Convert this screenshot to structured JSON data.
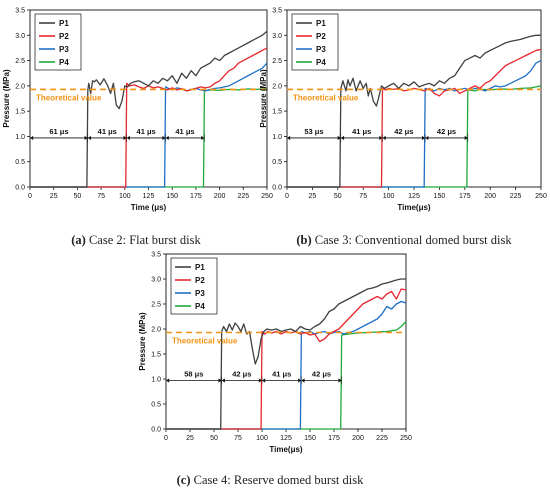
{
  "figure": {
    "colors": {
      "P1": "#404040",
      "P2": "#e8262d",
      "P3": "#1f6fc5",
      "P4": "#1fa83a",
      "theoretical": "#f29315"
    }
  },
  "chart_data": [
    {
      "type": "line",
      "caption_label": "(a)",
      "caption_text": " Case 2: Flat burst disk",
      "xlabel": "Time (μs)",
      "ylabel": "Pressure (MPa)",
      "xlim": [
        0,
        250
      ],
      "ylim": [
        0,
        3.5
      ],
      "xticks": [
        0,
        25,
        50,
        75,
        100,
        125,
        150,
        175,
        200,
        225,
        250
      ],
      "yticks": [
        0.0,
        0.5,
        1.0,
        1.5,
        2.0,
        2.5,
        3.0,
        3.5
      ],
      "grid": false,
      "legend_position": "top-left",
      "theoretical": {
        "label": "Theoretical value",
        "value": 1.93
      },
      "arrivals": [
        61,
        102,
        143,
        184
      ],
      "intervals": [
        {
          "from": 0,
          "to": 61,
          "label": "61 μs"
        },
        {
          "from": 61,
          "to": 102,
          "label": "41 μs"
        },
        {
          "from": 102,
          "to": 143,
          "label": "41 μs"
        },
        {
          "from": 143,
          "to": 184,
          "label": "41 μs"
        }
      ],
      "series": [
        {
          "name": "P1",
          "x": [
            0,
            60,
            61,
            62,
            64,
            66,
            68,
            70,
            74,
            78,
            82,
            85,
            88,
            91,
            94,
            97,
            100,
            103,
            106,
            110,
            115,
            120,
            125,
            130,
            135,
            140,
            145,
            150,
            155,
            160,
            165,
            170,
            175,
            180,
            185,
            190,
            195,
            200,
            205,
            210,
            215,
            220,
            225,
            230,
            235,
            240,
            245,
            250
          ],
          "y": [
            0,
            0,
            1.92,
            2.05,
            1.85,
            2.1,
            2.08,
            2.12,
            2.02,
            2.14,
            2.0,
            1.85,
            2.05,
            1.62,
            1.55,
            1.7,
            2.0,
            1.98,
            2.05,
            2.08,
            2.1,
            2.05,
            2.0,
            2.1,
            2.05,
            2.15,
            2.1,
            2.2,
            2.05,
            2.25,
            2.15,
            2.3,
            2.2,
            2.35,
            2.4,
            2.45,
            2.55,
            2.5,
            2.6,
            2.65,
            2.7,
            2.75,
            2.8,
            2.85,
            2.9,
            2.95,
            3.0,
            3.08
          ]
        },
        {
          "name": "P2",
          "x": [
            0,
            101,
            102,
            105,
            110,
            115,
            120,
            125,
            130,
            135,
            140,
            145,
            150,
            155,
            160,
            165,
            170,
            175,
            180,
            185,
            190,
            195,
            200,
            205,
            210,
            215,
            220,
            225,
            230,
            235,
            240,
            245,
            250
          ],
          "y": [
            0,
            0,
            2.05,
            2.0,
            2.02,
            1.98,
            1.95,
            2.0,
            1.96,
            1.98,
            1.95,
            1.92,
            1.96,
            1.92,
            1.95,
            1.9,
            1.92,
            1.95,
            1.98,
            1.96,
            1.98,
            2.05,
            2.1,
            2.2,
            2.3,
            2.35,
            2.45,
            2.5,
            2.55,
            2.6,
            2.65,
            2.7,
            2.75
          ]
        },
        {
          "name": "P3",
          "x": [
            0,
            142,
            143,
            146,
            150,
            155,
            160,
            165,
            170,
            175,
            180,
            185,
            190,
            195,
            200,
            205,
            210,
            215,
            220,
            225,
            230,
            235,
            240,
            245,
            250
          ],
          "y": [
            0,
            0,
            1.98,
            1.95,
            1.92,
            1.96,
            1.94,
            1.9,
            1.93,
            1.95,
            1.92,
            1.9,
            1.93,
            1.95,
            1.96,
            1.98,
            2.0,
            2.05,
            2.1,
            2.15,
            2.2,
            2.25,
            2.3,
            2.35,
            2.45
          ]
        },
        {
          "name": "P4",
          "x": [
            0,
            183,
            184,
            190,
            200,
            210,
            220,
            230,
            240,
            250
          ],
          "y": [
            0,
            0,
            1.9,
            1.92,
            1.91,
            1.93,
            1.92,
            1.94,
            1.93,
            1.95
          ]
        }
      ]
    },
    {
      "type": "line",
      "caption_label": "(b)",
      "caption_text": " Case 3: Conventional domed burst disk",
      "xlabel": "Time(μs)",
      "ylabel": "Pressure (MPa)",
      "xlim": [
        0,
        250
      ],
      "ylim": [
        0,
        3.5
      ],
      "xticks": [
        0,
        25,
        50,
        75,
        100,
        125,
        150,
        175,
        200,
        225,
        250
      ],
      "yticks": [
        0.0,
        0.5,
        1.0,
        1.5,
        2.0,
        2.5,
        3.0,
        3.5
      ],
      "grid": false,
      "legend_position": "top-left",
      "theoretical": {
        "label": "Theoretical value",
        "value": 1.93
      },
      "arrivals": [
        53,
        94,
        136,
        178
      ],
      "intervals": [
        {
          "from": 0,
          "to": 53,
          "label": "53 μs"
        },
        {
          "from": 53,
          "to": 94,
          "label": "41 μs"
        },
        {
          "from": 94,
          "to": 136,
          "label": "42 μs"
        },
        {
          "from": 136,
          "to": 178,
          "label": "42 μs"
        }
      ],
      "series": [
        {
          "name": "P1",
          "x": [
            0,
            52,
            53,
            55,
            58,
            60,
            62,
            65,
            68,
            72,
            75,
            78,
            80,
            82,
            85,
            88,
            90,
            93,
            96,
            100,
            105,
            110,
            115,
            120,
            125,
            130,
            135,
            140,
            145,
            150,
            155,
            160,
            165,
            170,
            175,
            180,
            185,
            190,
            195,
            200,
            205,
            210,
            215,
            220,
            225,
            230,
            235,
            240,
            245,
            250
          ],
          "y": [
            0,
            0,
            1.95,
            2.1,
            1.9,
            2.12,
            2.0,
            2.15,
            1.9,
            2.1,
            1.95,
            2.05,
            1.8,
            1.95,
            1.7,
            1.6,
            1.75,
            2.0,
            1.95,
            2.0,
            2.05,
            1.95,
            2.05,
            2.0,
            2.08,
            1.98,
            2.02,
            2.05,
            2.0,
            2.1,
            2.05,
            2.15,
            2.2,
            2.35,
            2.5,
            2.55,
            2.6,
            2.55,
            2.65,
            2.7,
            2.75,
            2.8,
            2.85,
            2.88,
            2.9,
            2.92,
            2.95,
            2.98,
            3.0,
            3.0
          ]
        },
        {
          "name": "P2",
          "x": [
            0,
            93,
            94,
            97,
            100,
            105,
            110,
            115,
            120,
            125,
            130,
            135,
            140,
            145,
            150,
            155,
            160,
            165,
            170,
            175,
            180,
            185,
            190,
            195,
            200,
            205,
            210,
            215,
            220,
            225,
            230,
            235,
            240,
            245,
            250
          ],
          "y": [
            0,
            0,
            1.95,
            1.92,
            1.95,
            1.93,
            1.95,
            1.9,
            1.92,
            1.95,
            1.93,
            1.9,
            1.95,
            1.85,
            1.8,
            1.9,
            1.92,
            1.95,
            1.85,
            1.9,
            1.95,
            2.0,
            1.95,
            2.05,
            2.1,
            2.2,
            2.3,
            2.4,
            2.45,
            2.5,
            2.55,
            2.6,
            2.65,
            2.7,
            2.72
          ]
        },
        {
          "name": "P3",
          "x": [
            0,
            135,
            136,
            140,
            145,
            150,
            155,
            160,
            165,
            170,
            175,
            180,
            185,
            190,
            195,
            200,
            205,
            210,
            215,
            220,
            225,
            230,
            235,
            240,
            245,
            250
          ],
          "y": [
            0,
            0,
            1.95,
            1.92,
            1.9,
            1.95,
            1.92,
            1.95,
            1.9,
            1.93,
            1.95,
            1.92,
            1.95,
            1.93,
            1.9,
            1.95,
            2.0,
            1.98,
            2.0,
            2.05,
            2.1,
            2.15,
            2.2,
            2.3,
            2.45,
            2.5
          ]
        },
        {
          "name": "P4",
          "x": [
            0,
            177,
            178,
            185,
            190,
            200,
            210,
            220,
            230,
            240,
            245,
            250
          ],
          "y": [
            0,
            0,
            1.92,
            1.9,
            1.93,
            1.92,
            1.94,
            1.93,
            1.95,
            1.96,
            1.98,
            2.0
          ]
        }
      ]
    },
    {
      "type": "line",
      "caption_label": "(c)",
      "caption_text": " Case 4: Reserve domed burst disk",
      "xlabel": "Time(μs)",
      "ylabel": "Pressure (MPa)",
      "xlim": [
        0,
        250
      ],
      "ylim": [
        0,
        3.5
      ],
      "xticks": [
        0,
        25,
        50,
        75,
        100,
        125,
        150,
        175,
        200,
        225,
        250
      ],
      "yticks": [
        0.0,
        0.5,
        1.0,
        1.5,
        2.0,
        2.5,
        3.0,
        3.5
      ],
      "grid": false,
      "legend_position": "top-left",
      "theoretical": {
        "label": "Theoretical value",
        "value": 1.93
      },
      "arrivals": [
        58,
        100,
        141,
        183
      ],
      "intervals": [
        {
          "from": 0,
          "to": 58,
          "label": "58 μs"
        },
        {
          "from": 58,
          "to": 100,
          "label": "42 μs"
        },
        {
          "from": 100,
          "to": 141,
          "label": "41 μs"
        },
        {
          "from": 141,
          "to": 183,
          "label": "42 μs"
        }
      ],
      "series": [
        {
          "name": "P1",
          "x": [
            0,
            57,
            58,
            60,
            63,
            66,
            69,
            72,
            75,
            78,
            81,
            84,
            87,
            90,
            93,
            96,
            99,
            102,
            105,
            110,
            115,
            120,
            125,
            130,
            135,
            140,
            145,
            150,
            155,
            160,
            165,
            170,
            175,
            180,
            185,
            190,
            195,
            200,
            205,
            210,
            215,
            220,
            225,
            230,
            235,
            240,
            245,
            250
          ],
          "y": [
            0,
            0,
            1.95,
            2.05,
            1.95,
            2.1,
            1.98,
            2.12,
            2.05,
            1.95,
            2.1,
            1.9,
            1.95,
            1.6,
            1.3,
            1.45,
            1.8,
            1.95,
            2.0,
            1.98,
            2.0,
            1.95,
            1.98,
            2.0,
            1.95,
            2.05,
            2.0,
            1.98,
            2.05,
            2.1,
            2.2,
            2.35,
            2.4,
            2.5,
            2.55,
            2.6,
            2.65,
            2.7,
            2.75,
            2.8,
            2.82,
            2.85,
            2.9,
            2.92,
            2.95,
            2.98,
            3.0,
            3.0
          ]
        },
        {
          "name": "P2",
          "x": [
            0,
            99,
            100,
            103,
            106,
            110,
            115,
            120,
            125,
            130,
            135,
            140,
            145,
            150,
            155,
            160,
            165,
            170,
            175,
            180,
            185,
            190,
            195,
            200,
            205,
            210,
            215,
            220,
            225,
            230,
            235,
            240,
            245,
            250
          ],
          "y": [
            0,
            0,
            1.95,
            1.9,
            1.95,
            1.92,
            1.95,
            1.9,
            1.95,
            1.92,
            1.95,
            1.9,
            1.93,
            1.88,
            1.9,
            1.75,
            1.8,
            1.9,
            1.95,
            2.0,
            2.1,
            2.2,
            2.3,
            2.4,
            2.5,
            2.55,
            2.6,
            2.65,
            2.6,
            2.7,
            2.75,
            2.6,
            2.8,
            2.78
          ]
        },
        {
          "name": "P3",
          "x": [
            0,
            140,
            141,
            145,
            150,
            155,
            160,
            165,
            170,
            175,
            180,
            185,
            190,
            195,
            200,
            205,
            210,
            215,
            220,
            225,
            230,
            235,
            240,
            245,
            250
          ],
          "y": [
            0,
            0,
            1.95,
            1.92,
            1.95,
            1.9,
            1.93,
            1.95,
            1.9,
            1.93,
            1.95,
            1.9,
            1.93,
            1.95,
            2.0,
            2.05,
            2.1,
            2.15,
            2.2,
            2.3,
            2.45,
            2.4,
            2.5,
            2.55,
            2.52
          ]
        },
        {
          "name": "P4",
          "x": [
            0,
            182,
            183,
            190,
            200,
            210,
            220,
            230,
            240,
            245,
            250
          ],
          "y": [
            0,
            0,
            1.88,
            1.9,
            1.92,
            1.93,
            1.94,
            1.95,
            1.98,
            2.05,
            2.15
          ]
        }
      ]
    }
  ]
}
